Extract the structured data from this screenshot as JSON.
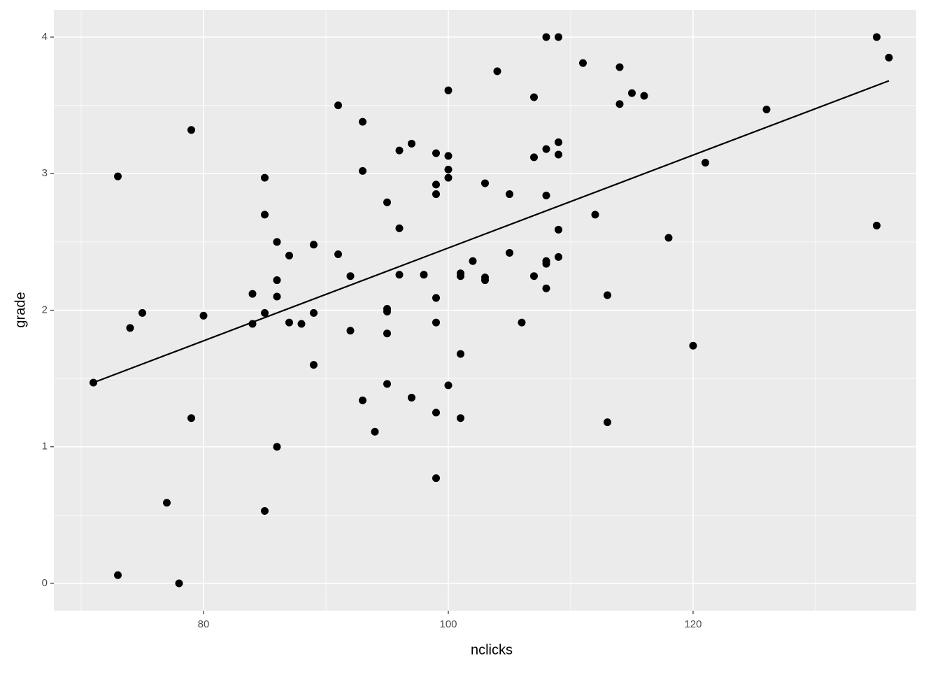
{
  "chart_data": {
    "type": "scatter",
    "x_label": "nclicks",
    "y_label": "grade",
    "xlim": [
      67.77,
      138.23
    ],
    "ylim": [
      -0.2,
      4.2
    ],
    "xticks": [
      80,
      100,
      120
    ],
    "yticks": [
      0,
      1,
      2,
      3,
      4
    ],
    "x_minor_ticks": [
      70,
      90,
      110,
      130
    ],
    "y_minor_ticks": [
      0.5,
      1.5,
      2.5,
      3.5
    ],
    "grid": true,
    "color": "#000000",
    "panel_color": "#ebebeb",
    "fit": {
      "x": [
        71,
        136
      ],
      "y": [
        1.47,
        3.68
      ]
    },
    "x": [
      71,
      73,
      73,
      74,
      75,
      77,
      78,
      79,
      79,
      80,
      84,
      84,
      85,
      85,
      85,
      85,
      86,
      86,
      86,
      86,
      87,
      87,
      88,
      89,
      89,
      89,
      91,
      91,
      92,
      92,
      93,
      93,
      93,
      94,
      95,
      95,
      95,
      95,
      95,
      96,
      96,
      96,
      97,
      97,
      98,
      99,
      99,
      99,
      99,
      99,
      99,
      99,
      100,
      100,
      100,
      100,
      100,
      101,
      101,
      101,
      101,
      102,
      103,
      103,
      103,
      104,
      105,
      105,
      106,
      107,
      107,
      107,
      108,
      108,
      108,
      108,
      108,
      108,
      109,
      109,
      109,
      109,
      109,
      111,
      112,
      113,
      113,
      114,
      114,
      115,
      116,
      118,
      120,
      121,
      126,
      135,
      135,
      136
    ],
    "y": [
      1.47,
      2.98,
      0.06,
      1.87,
      1.98,
      0.59,
      0.0,
      3.32,
      1.21,
      1.96,
      2.12,
      1.9,
      2.97,
      2.7,
      1.98,
      0.53,
      2.5,
      2.22,
      2.1,
      1.0,
      2.4,
      1.91,
      1.9,
      2.48,
      1.98,
      1.6,
      3.5,
      2.41,
      2.25,
      1.85,
      3.38,
      3.02,
      1.34,
      1.11,
      2.79,
      2.01,
      1.99,
      1.83,
      1.46,
      3.17,
      2.6,
      2.26,
      3.22,
      1.36,
      2.26,
      3.15,
      2.92,
      2.85,
      2.09,
      1.91,
      1.25,
      0.77,
      3.61,
      3.13,
      3.03,
      2.97,
      1.45,
      2.27,
      2.25,
      1.68,
      1.21,
      2.36,
      2.93,
      2.24,
      2.22,
      3.75,
      2.85,
      2.42,
      1.91,
      3.56,
      3.12,
      2.25,
      4.0,
      3.18,
      2.84,
      2.36,
      2.34,
      2.16,
      4.0,
      3.23,
      3.14,
      2.59,
      2.39,
      3.81,
      2.7,
      2.11,
      1.18,
      3.78,
      3.51,
      3.59,
      3.57,
      2.53,
      1.74,
      3.08,
      3.47,
      4.0,
      2.62,
      3.85
    ]
  }
}
